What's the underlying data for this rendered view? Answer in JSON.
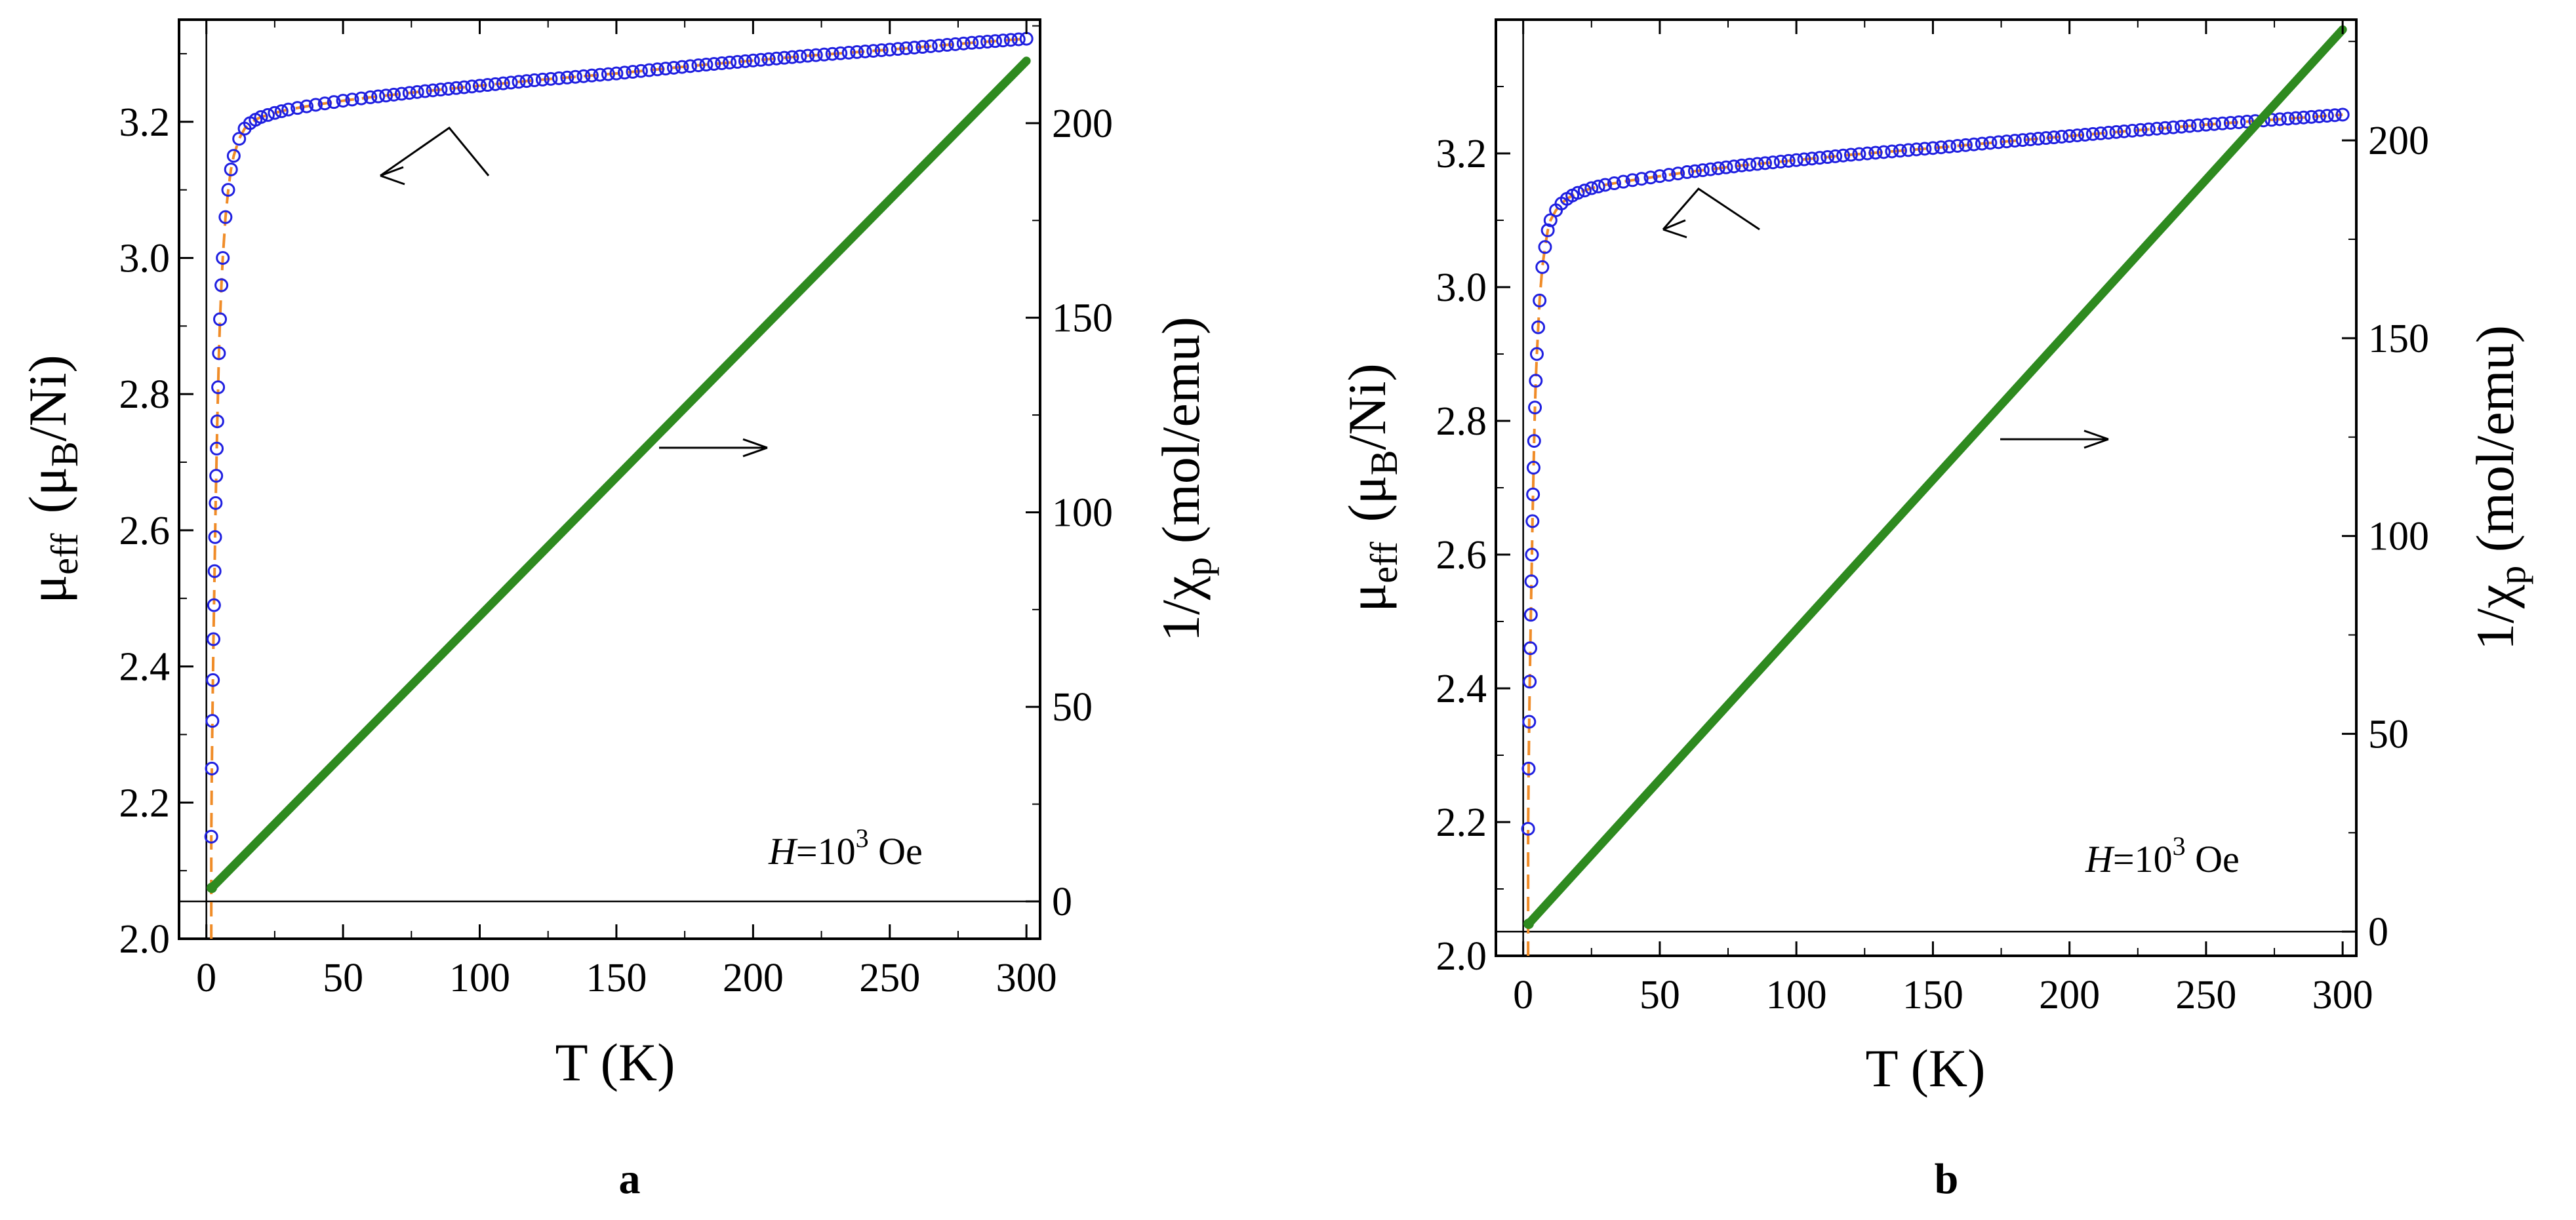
{
  "figure": {
    "panels": [
      {
        "panel_label": "a",
        "annotation_field": "H",
        "annotation_eq": "=10",
        "annotation_exp": "3",
        "annotation_unit": " Oe"
      },
      {
        "panel_label": "b",
        "annotation_field": "H",
        "annotation_eq": "=10",
        "annotation_exp": "3",
        "annotation_unit": " Oe"
      }
    ]
  },
  "chart_data": [
    {
      "type": "scatter",
      "title": "",
      "panel": "a",
      "xlabel": "T (K)",
      "ylabel_left": "μeff (μB/Ni)",
      "ylabel_left_parts": {
        "mu": "μ",
        "sub": "eff",
        "open": "(μ",
        "sub2": "B",
        "close": "/Ni)"
      },
      "ylabel_right": "1/χp (mol/emu)",
      "ylabel_right_parts": {
        "main": "1/χ",
        "sub": "p",
        "rest": " (mol/emu)"
      },
      "xlim": [
        -10,
        305
      ],
      "ylim_left": [
        2.0,
        3.35
      ],
      "ylim_right": [
        -9.6,
        226.6
      ],
      "x_ticks": [
        0,
        50,
        100,
        150,
        200,
        250,
        300
      ],
      "x_tick_labels": [
        "0",
        "50",
        "100",
        "150",
        "200",
        "250",
        "300"
      ],
      "y_left_ticks": [
        2.0,
        2.2,
        2.4,
        2.6,
        2.8,
        3.0,
        3.2
      ],
      "y_left_tick_labels": [
        "2.0",
        "2.2",
        "2.4",
        "2.6",
        "2.8",
        "3.0",
        "3.2"
      ],
      "y_right_ticks": [
        0,
        50,
        100,
        150,
        200
      ],
      "y_right_tick_labels": [
        "0",
        "50",
        "100",
        "150",
        "200"
      ],
      "series": [
        {
          "name": "μeff (blue open circles, left axis)",
          "axis": "left",
          "color": "#1f1fe0",
          "fit_color": "#f08c28",
          "x": [
            1.8,
            2.0,
            2.2,
            2.4,
            2.6,
            2.8,
            3.0,
            3.2,
            3.4,
            3.6,
            3.8,
            4.0,
            4.3,
            4.6,
            5.0,
            5.5,
            6,
            7,
            8,
            9,
            10,
            12,
            14,
            16,
            18,
            20,
            25,
            30,
            40,
            50,
            60,
            80,
            100,
            120,
            150,
            180,
            200,
            220,
            250,
            280,
            300
          ],
          "y": [
            2.15,
            2.25,
            2.32,
            2.38,
            2.44,
            2.49,
            2.54,
            2.59,
            2.64,
            2.68,
            2.72,
            2.76,
            2.81,
            2.86,
            2.91,
            2.96,
            3.0,
            3.06,
            3.1,
            3.13,
            3.15,
            3.175,
            3.19,
            3.198,
            3.203,
            3.207,
            3.213,
            3.218,
            3.225,
            3.231,
            3.236,
            3.245,
            3.253,
            3.261,
            3.271,
            3.283,
            3.29,
            3.297,
            3.306,
            3.316,
            3.322
          ]
        },
        {
          "name": "1/χp (green, right axis)",
          "axis": "right",
          "color": "#2e8a1f",
          "x": [
            2,
            300
          ],
          "y": [
            3.5,
            216
          ]
        }
      ],
      "arrows": [
        "left-pointing arrow toward μeff curve",
        "right-pointing arrow toward 1/χp line"
      ]
    },
    {
      "type": "scatter",
      "title": "",
      "panel": "b",
      "xlabel": "T (K)",
      "ylabel_left": "μeff (μB/Ni)",
      "ylabel_left_parts": {
        "mu": "μ",
        "sub": "eff",
        "open": "(μ",
        "sub2": "B",
        "close": "/Ni)"
      },
      "ylabel_right": "1/χp (mol/emu)",
      "ylabel_right_parts": {
        "main": "1/χ",
        "sub": "p",
        "rest": " (mol/emu)"
      },
      "xlim": [
        -10,
        305
      ],
      "ylim_left": [
        2.0,
        3.4
      ],
      "ylim_right": [
        -6.1,
        230.5
      ],
      "x_ticks": [
        0,
        50,
        100,
        150,
        200,
        250,
        300
      ],
      "x_tick_labels": [
        "0",
        "50",
        "100",
        "150",
        "200",
        "250",
        "300"
      ],
      "y_left_ticks": [
        2.0,
        2.2,
        2.4,
        2.6,
        2.8,
        3.0,
        3.2
      ],
      "y_left_tick_labels": [
        "2.0",
        "2.2",
        "2.4",
        "2.6",
        "2.8",
        "3.0",
        "3.2"
      ],
      "y_right_ticks": [
        0,
        50,
        100,
        150,
        200
      ],
      "y_right_tick_labels": [
        "0",
        "50",
        "100",
        "150",
        "200"
      ],
      "series": [
        {
          "name": "μeff (blue open circles, left axis)",
          "axis": "left",
          "color": "#1f1fe0",
          "fit_color": "#f08c28",
          "x": [
            1.8,
            2.0,
            2.2,
            2.4,
            2.6,
            2.8,
            3.0,
            3.2,
            3.4,
            3.6,
            3.8,
            4.0,
            4.3,
            4.6,
            5.0,
            5.5,
            6,
            7,
            8,
            9,
            10,
            12,
            14,
            16,
            18,
            20,
            25,
            30,
            40,
            50,
            60,
            80,
            100,
            120,
            150,
            180,
            200,
            220,
            250,
            280,
            300
          ],
          "y": [
            2.19,
            2.28,
            2.35,
            2.41,
            2.46,
            2.51,
            2.56,
            2.6,
            2.65,
            2.69,
            2.73,
            2.77,
            2.82,
            2.86,
            2.9,
            2.94,
            2.98,
            3.03,
            3.06,
            3.085,
            3.1,
            3.115,
            3.125,
            3.132,
            3.137,
            3.141,
            3.148,
            3.153,
            3.16,
            3.166,
            3.172,
            3.182,
            3.19,
            3.198,
            3.208,
            3.219,
            3.226,
            3.233,
            3.243,
            3.252,
            3.258
          ]
        },
        {
          "name": "1/χp (green, right axis)",
          "axis": "right",
          "color": "#2e8a1f",
          "x": [
            2,
            300
          ],
          "y": [
            2.0,
            228
          ]
        }
      ],
      "arrows": [
        "left-pointing arrow toward μeff curve",
        "right-pointing arrow toward 1/χp line"
      ]
    }
  ]
}
